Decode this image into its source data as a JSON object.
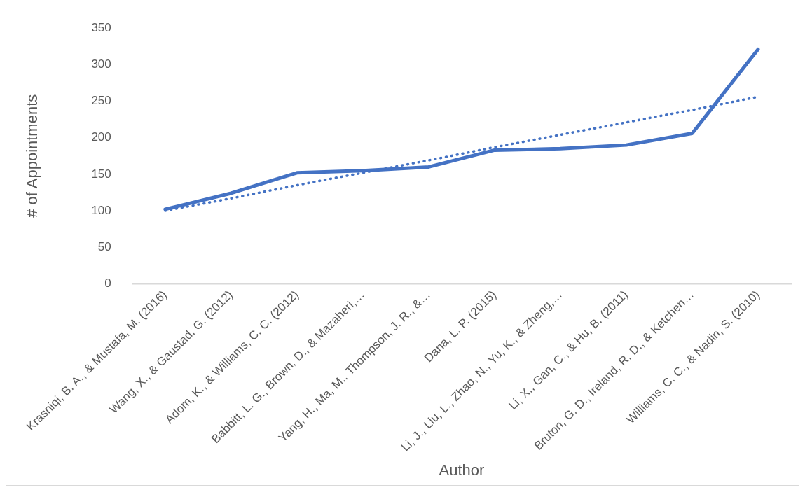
{
  "chart_data": {
    "type": "line",
    "xlabel": "Author",
    "ylabel": "# of Appointments",
    "categories": [
      "Krasniqi, B. A., & Mustafa, M. (2016)",
      "Wang, X., & Gaustad, G. (2012)",
      "Adom, K., & Williams, C. C. (2012)",
      "Babbitt, L. G., Brown, D., & Mazaheri,…",
      "Yang, H., Ma, M., Thompson, J. R., &…",
      "Dana, L. P. (2015)",
      "Li, J., Liu, L., Zhao, N., Yu, K., & Zheng,…",
      "Li, X., Gan, C., & Hu, B. (2011)",
      "Bruton, G. D., Ireland, R. D., & Ketchen…",
      "Williams, C. C., & Nadin, S. (2010)"
    ],
    "series": [
      {
        "color": "#4472c4",
        "line_style": "solid",
        "values": [
          102,
          124,
          152,
          155,
          160,
          183,
          185,
          190,
          206,
          321
        ]
      },
      {
        "type": "line",
        "color": "#4472c4",
        "line_style": "dotted",
        "x": [
          "Krasniqi, B. A., & Mustafa, M. (2016)",
          "Wang, X., & Gaustad, G. (2012)",
          "Adom, K., & Williams, C. C. (2012)",
          "Babbitt, L. G., Brown, D., & Mazaheri,…",
          "Yang, H., Ma, M., Thompson, J. R., &…",
          "Dana, L. P. (2015)",
          "Li, J., Liu, L., Zhao, N., Yu, K., & Zheng,…",
          "Li, X., Gan, C., & Hu, B. (2011)",
          "Bruton, G. D., Ireland, R. D., & Ketchen…",
          "Williams, C. C., & Nadin, S. (2010)"
        ],
        "values": [
          100,
          117,
          135,
          152,
          169,
          187,
          204,
          221,
          238,
          256
        ]
      }
    ],
    "ylim": [
      0,
      350
    ],
    "yticks": [
      0,
      50,
      100,
      150,
      200,
      250,
      300,
      350
    ],
    "grid": false,
    "legend": false,
    "marker": "none"
  }
}
